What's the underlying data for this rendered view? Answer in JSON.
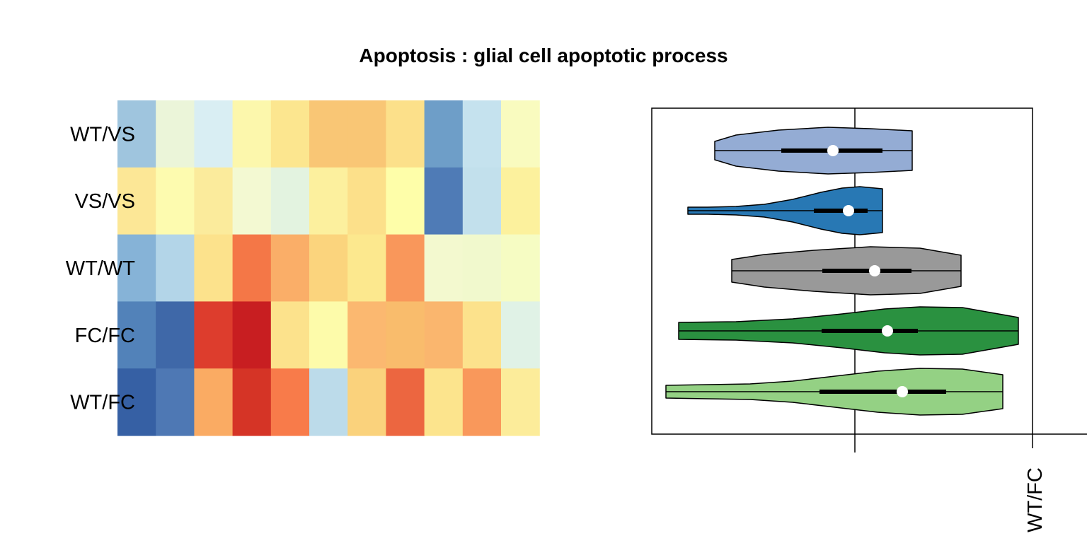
{
  "chart_data": [
    {
      "type": "heatmap",
      "title": "Apoptosis : glial cell apoptotic process",
      "rows": [
        "WT/VS",
        "VS/VS",
        "WT/WT",
        "FC/FC",
        "WT/FC"
      ],
      "columns": 11,
      "colors": [
        [
          "#9fc5de",
          "#ebf5d9",
          "#d9eef3",
          "#fcf7ac",
          "#fce68f",
          "#f9c675",
          "#f9c675",
          "#fce08a",
          "#6e9ec8",
          "#c5e2ee",
          "#f9fbbf"
        ],
        [
          "#fce796",
          "#fdfbaf",
          "#fbeb9c",
          "#f3f9d2",
          "#e3f3e0",
          "#fcf09e",
          "#fce08a",
          "#fefea9",
          "#4f7bb6",
          "#c2e0ec",
          "#fcf19d"
        ],
        [
          "#86b3d7",
          "#b3d5e8",
          "#fce28c",
          "#f47747",
          "#faae68",
          "#fbd47d",
          "#fce88e",
          "#f9975b",
          "#f3f9cf",
          "#f1f9cd",
          "#f6fcc3"
        ],
        [
          "#5282b9",
          "#3f68a8",
          "#dd3d2d",
          "#c81e21",
          "#fce28c",
          "#fdfbaa",
          "#fbb870",
          "#f9bc6c",
          "#fab66e",
          "#fce28c",
          "#e0f2e6"
        ],
        [
          "#3660a4",
          "#4e78b4",
          "#faab63",
          "#d53426",
          "#f87b4a",
          "#bcdbea",
          "#fad27c",
          "#ec6640",
          "#fce48d",
          "#f9985b",
          "#fcec9a"
        ]
      ],
      "colorscale": "RdYlBu (reversed)"
    },
    {
      "type": "violin",
      "categories": [
        "WT/VS",
        "VS/VS",
        "WT/WT",
        "FC/FC",
        "WT/FC"
      ],
      "x_tick_labels": [
        "WT/FC"
      ],
      "series_colors": [
        "#94acd4",
        "#2878b4",
        "#999999",
        "#2a9140",
        "#94d184"
      ]
    }
  ]
}
